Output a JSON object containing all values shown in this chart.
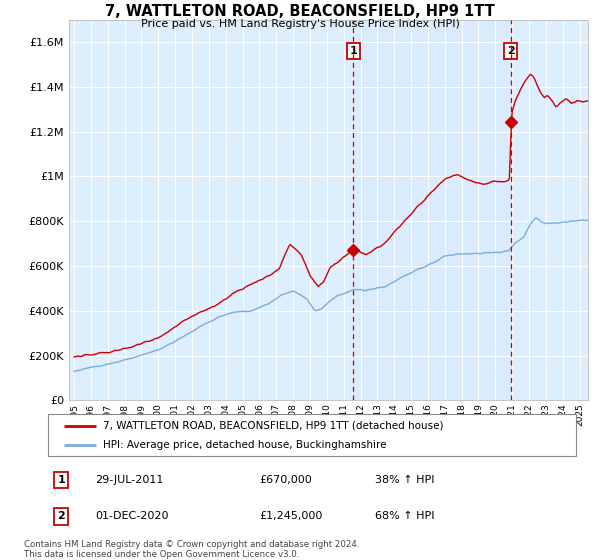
{
  "title": "7, WATTLETON ROAD, BEACONSFIELD, HP9 1TT",
  "subtitle": "Price paid vs. HM Land Registry's House Price Index (HPI)",
  "legend_line1": "7, WATTLETON ROAD, BEACONSFIELD, HP9 1TT (detached house)",
  "legend_line2": "HPI: Average price, detached house, Buckinghamshire",
  "sale1_date": "29-JUL-2011",
  "sale1_price": 670000,
  "sale1_hpi": "38% ↑ HPI",
  "sale2_date": "01-DEC-2020",
  "sale2_price": 1245000,
  "sale2_hpi": "68% ↑ HPI",
  "footnote": "Contains HM Land Registry data © Crown copyright and database right 2024.\nThis data is licensed under the Open Government Licence v3.0.",
  "red_color": "#cc0000",
  "blue_color": "#7aaddc",
  "bg_color": "#ddeeff",
  "grid_color": "#ffffff",
  "ylim_max": 1700000,
  "ylim_min": 0,
  "sale1_year_float": 2011.583,
  "sale2_year_float": 2020.917
}
